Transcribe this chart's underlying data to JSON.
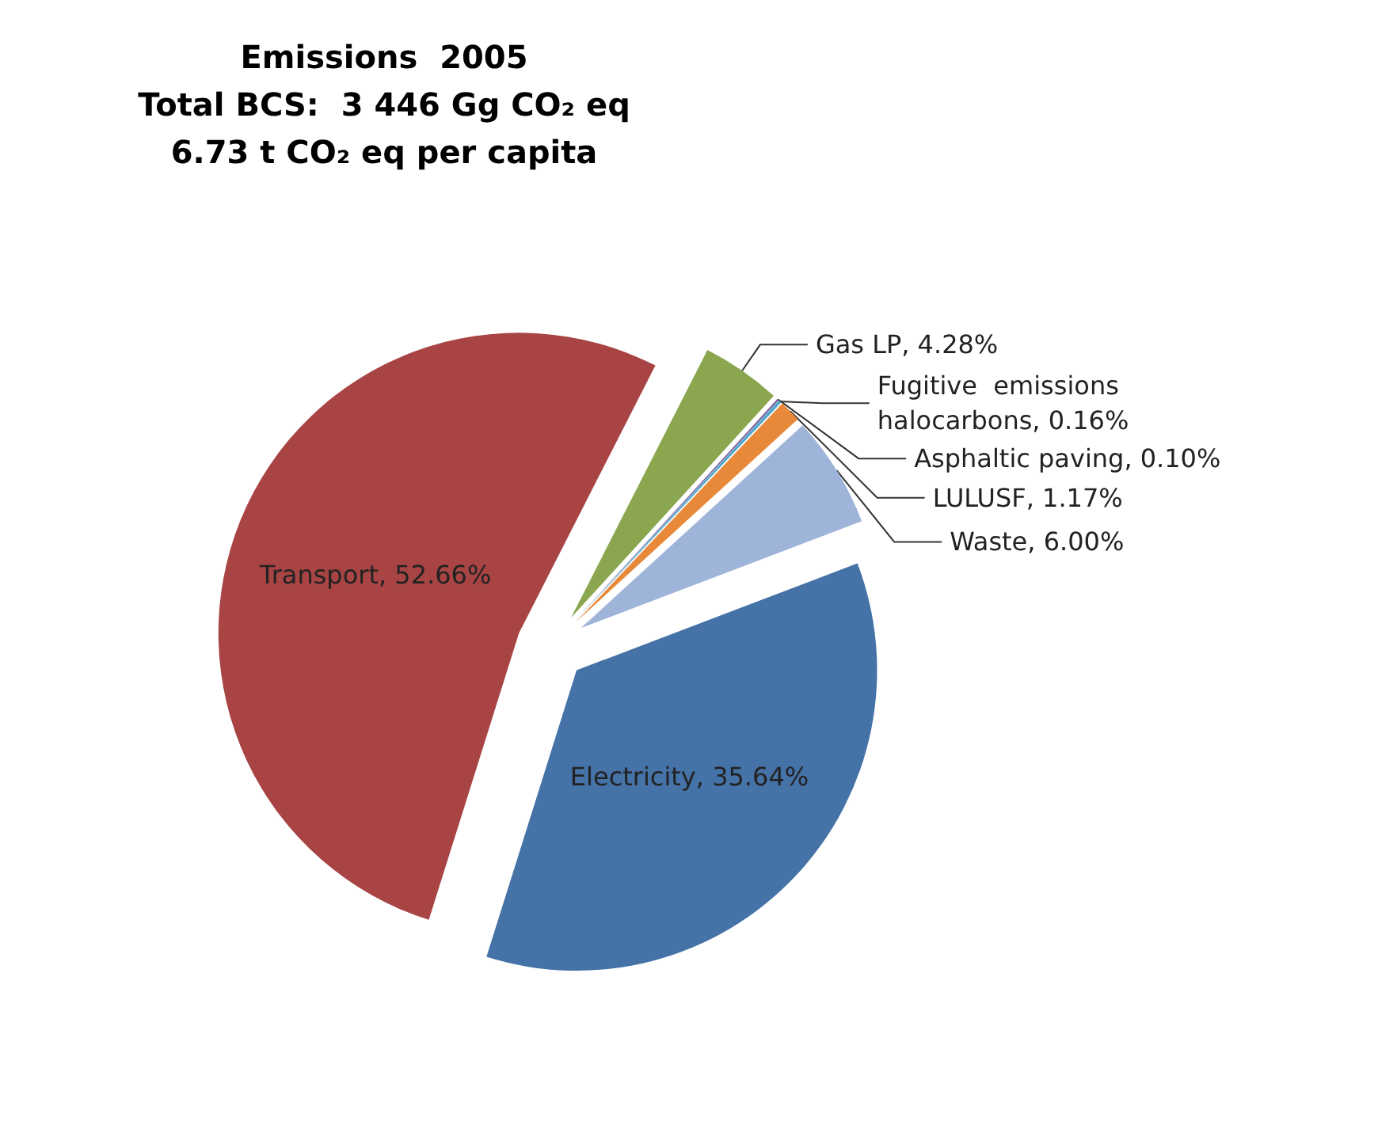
{
  "chart_data": {
    "type": "pie",
    "title": "Emissions  2005\nTotal BCS:  3 446 Gg CO₂ eq\n6.73 t CO₂ eq per capita",
    "categories": [
      "Gas LP",
      "Asphaltic paving",
      "Fugitive  emissions halocarbons",
      "LULUSF",
      "Waste",
      "Electricity",
      "Transport"
    ],
    "values": [
      4.28,
      0.1,
      0.16,
      1.17,
      6.0,
      35.64,
      52.66
    ],
    "colors": [
      "#8aa64f",
      "#7a5fa0",
      "#4fa8c8",
      "#e8893a",
      "#9fb4d9",
      "#4572a7",
      "#a84443"
    ],
    "value_labels": [
      "4.28%",
      "0.10%",
      "0.16%",
      "1.17%",
      "6.00%",
      "35.64%",
      "52.66%"
    ],
    "legend": false
  }
}
